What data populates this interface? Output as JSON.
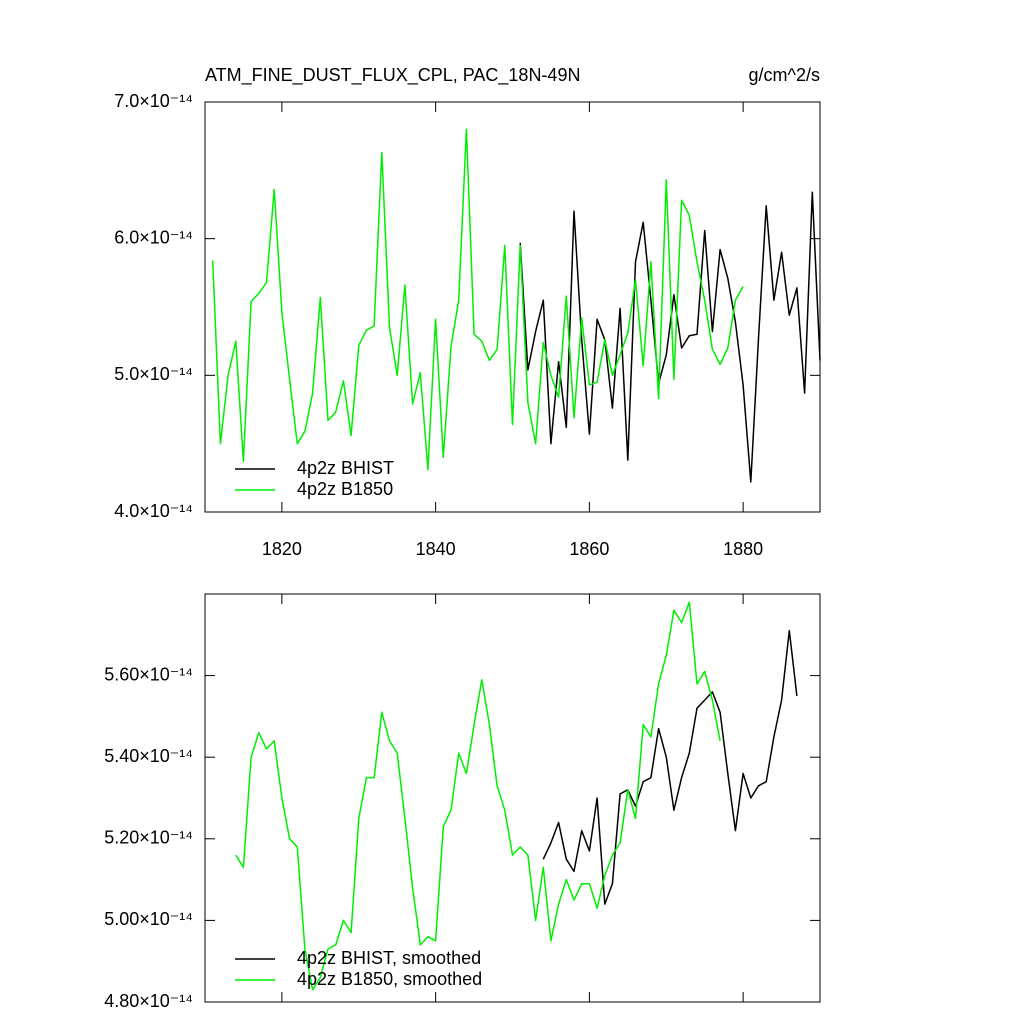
{
  "chart_data": [
    {
      "type": "line",
      "title": "ATM_FINE_DUST_FLUX_CPL, PAC_18N-49N",
      "units": "g/cm^2/s",
      "xlim": [
        1810,
        1890
      ],
      "xticks": [
        1820,
        1840,
        1860,
        1880
      ],
      "show_xtick_labels": true,
      "ylim": [
        4e-14,
        7e-14
      ],
      "yticks": [
        {
          "value": 4e-14,
          "label": "4.0×10⁻¹⁴"
        },
        {
          "value": 5e-14,
          "label": "5.0×10⁻¹⁴"
        },
        {
          "value": 6e-14,
          "label": "6.0×10⁻¹⁴"
        },
        {
          "value": 7e-14,
          "label": "7.0×10⁻¹⁴"
        }
      ],
      "legend": "lower left",
      "series": [
        {
          "name": "4p2z BHIST",
          "color": "#000000",
          "x": [
            1851,
            1852,
            1853,
            1854,
            1855,
            1856,
            1857,
            1858,
            1859,
            1860,
            1861,
            1862,
            1863,
            1864,
            1865,
            1866,
            1867,
            1868,
            1869,
            1870,
            1871,
            1872,
            1873,
            1874,
            1875,
            1876,
            1877,
            1878,
            1879,
            1880,
            1881,
            1882,
            1883,
            1884,
            1885,
            1886,
            1887,
            1888,
            1889,
            1890
          ],
          "values": [
            5.97e-14,
            5.04e-14,
            5.32e-14,
            5.55e-14,
            4.5e-14,
            5.1e-14,
            4.62e-14,
            6.2e-14,
            5.26e-14,
            4.57e-14,
            5.41e-14,
            5.26e-14,
            4.76e-14,
            5.49e-14,
            4.38e-14,
            5.83e-14,
            6.12e-14,
            5.55e-14,
            4.94e-14,
            5.15e-14,
            5.59e-14,
            5.2e-14,
            5.29e-14,
            5.3e-14,
            6.06e-14,
            5.32e-14,
            5.92e-14,
            5.71e-14,
            5.39e-14,
            4.93e-14,
            4.22e-14,
            5.27e-14,
            6.24e-14,
            5.55e-14,
            5.9e-14,
            5.44e-14,
            5.64e-14,
            4.87e-14,
            6.34e-14,
            5.11e-14
          ]
        },
        {
          "name": "4p2z B1850",
          "color": "#00ee00",
          "x": [
            1811,
            1812,
            1813,
            1814,
            1815,
            1816,
            1817,
            1818,
            1819,
            1820,
            1821,
            1822,
            1823,
            1824,
            1825,
            1826,
            1827,
            1828,
            1829,
            1830,
            1831,
            1832,
            1833,
            1834,
            1835,
            1836,
            1837,
            1838,
            1839,
            1840,
            1841,
            1842,
            1843,
            1844,
            1845,
            1846,
            1847,
            1848,
            1849,
            1850,
            1851,
            1852,
            1853,
            1854,
            1855,
            1856,
            1857,
            1858,
            1859,
            1860,
            1861,
            1862,
            1863,
            1864,
            1865,
            1866,
            1867,
            1868,
            1869,
            1870,
            1871,
            1872,
            1873,
            1874,
            1875,
            1876,
            1877,
            1878,
            1879,
            1880
          ],
          "values": [
            5.84e-14,
            4.5e-14,
            5e-14,
            5.25e-14,
            4.37e-14,
            5.54e-14,
            5.6e-14,
            5.68e-14,
            6.36e-14,
            5.46e-14,
            4.97e-14,
            4.5e-14,
            4.59e-14,
            4.87e-14,
            5.57e-14,
            4.67e-14,
            4.73e-14,
            4.96e-14,
            4.56e-14,
            5.22e-14,
            5.33e-14,
            5.36e-14,
            6.63e-14,
            5.35e-14,
            5e-14,
            5.66e-14,
            4.79e-14,
            5.02e-14,
            4.31e-14,
            5.41e-14,
            4.4e-14,
            5.21e-14,
            5.55e-14,
            6.8e-14,
            5.3e-14,
            5.25e-14,
            5.11e-14,
            5.19e-14,
            5.95e-14,
            4.64e-14,
            5.95e-14,
            4.8e-14,
            4.5e-14,
            5.24e-14,
            5e-14,
            4.84e-14,
            5.58e-14,
            4.69e-14,
            5.42e-14,
            4.93e-14,
            4.95e-14,
            5.26e-14,
            5e-14,
            5.15e-14,
            5.31e-14,
            5.7e-14,
            5.07e-14,
            5.83e-14,
            4.83e-14,
            6.43e-14,
            4.97e-14,
            6.28e-14,
            6.17e-14,
            5.83e-14,
            5.55e-14,
            5.19e-14,
            5.08e-14,
            5.2e-14,
            5.55e-14,
            5.65e-14
          ]
        }
      ]
    },
    {
      "type": "line",
      "xlim": [
        1810,
        1890
      ],
      "xticks": [
        1820,
        1840,
        1860,
        1880
      ],
      "show_xtick_labels": false,
      "ylim": [
        4.8e-14,
        5.8e-14
      ],
      "yticks": [
        {
          "value": 4.8e-14,
          "label": "4.80×10⁻¹⁴"
        },
        {
          "value": 5e-14,
          "label": "5.00×10⁻¹⁴"
        },
        {
          "value": 5.2e-14,
          "label": "5.20×10⁻¹⁴"
        },
        {
          "value": 5.4e-14,
          "label": "5.40×10⁻¹⁴"
        },
        {
          "value": 5.6e-14,
          "label": "5.60×10⁻¹⁴"
        }
      ],
      "legend": "lower left",
      "series": [
        {
          "name": "4p2z BHIST, smoothed",
          "color": "#000000",
          "x": [
            1854,
            1855,
            1856,
            1857,
            1858,
            1859,
            1860,
            1861,
            1862,
            1863,
            1864,
            1865,
            1866,
            1867,
            1868,
            1869,
            1870,
            1871,
            1872,
            1873,
            1874,
            1875,
            1876,
            1877,
            1878,
            1879,
            1880,
            1881,
            1882,
            1883,
            1884,
            1885,
            1886,
            1887
          ],
          "values": [
            5.15e-14,
            5.19e-14,
            5.24e-14,
            5.15e-14,
            5.12e-14,
            5.22e-14,
            5.17e-14,
            5.3e-14,
            5.04e-14,
            5.09e-14,
            5.31e-14,
            5.32e-14,
            5.28e-14,
            5.34e-14,
            5.35e-14,
            5.47e-14,
            5.4e-14,
            5.27e-14,
            5.35e-14,
            5.41e-14,
            5.52e-14,
            5.54e-14,
            5.56e-14,
            5.51e-14,
            5.36e-14,
            5.22e-14,
            5.36e-14,
            5.3e-14,
            5.33e-14,
            5.34e-14,
            5.45e-14,
            5.54e-14,
            5.71e-14,
            5.55e-14
          ]
        },
        {
          "name": "4p2z B1850, smoothed",
          "color": "#00ee00",
          "x": [
            1814,
            1815,
            1816,
            1817,
            1818,
            1819,
            1820,
            1821,
            1822,
            1823,
            1824,
            1825,
            1826,
            1827,
            1828,
            1829,
            1830,
            1831,
            1832,
            1833,
            1834,
            1835,
            1836,
            1837,
            1838,
            1839,
            1840,
            1841,
            1842,
            1843,
            1844,
            1845,
            1846,
            1847,
            1848,
            1849,
            1850,
            1851,
            1852,
            1853,
            1854,
            1855,
            1856,
            1857,
            1858,
            1859,
            1860,
            1861,
            1862,
            1863,
            1864,
            1865,
            1866,
            1867,
            1868,
            1869,
            1870,
            1871,
            1872,
            1873,
            1874,
            1875,
            1876,
            1877
          ],
          "values": [
            5.16e-14,
            5.13e-14,
            5.4e-14,
            5.46e-14,
            5.42e-14,
            5.44e-14,
            5.3e-14,
            5.2e-14,
            5.18e-14,
            4.93e-14,
            4.83e-14,
            4.86e-14,
            4.93e-14,
            4.94e-14,
            5e-14,
            4.97e-14,
            5.25e-14,
            5.35e-14,
            5.35e-14,
            5.51e-14,
            5.44e-14,
            5.41e-14,
            5.25e-14,
            5.08e-14,
            4.94e-14,
            4.96e-14,
            4.95e-14,
            5.23e-14,
            5.27e-14,
            5.41e-14,
            5.36e-14,
            5.48e-14,
            5.59e-14,
            5.48e-14,
            5.33e-14,
            5.27e-14,
            5.16e-14,
            5.18e-14,
            5.16e-14,
            5e-14,
            5.13e-14,
            4.95e-14,
            5.04e-14,
            5.1e-14,
            5.05e-14,
            5.09e-14,
            5.09e-14,
            5.03e-14,
            5.11e-14,
            5.16e-14,
            5.19e-14,
            5.32e-14,
            5.25e-14,
            5.48e-14,
            5.45e-14,
            5.58e-14,
            5.65e-14,
            5.76e-14,
            5.73e-14,
            5.78e-14,
            5.58e-14,
            5.61e-14,
            5.54e-14,
            5.44e-14
          ]
        }
      ]
    }
  ]
}
